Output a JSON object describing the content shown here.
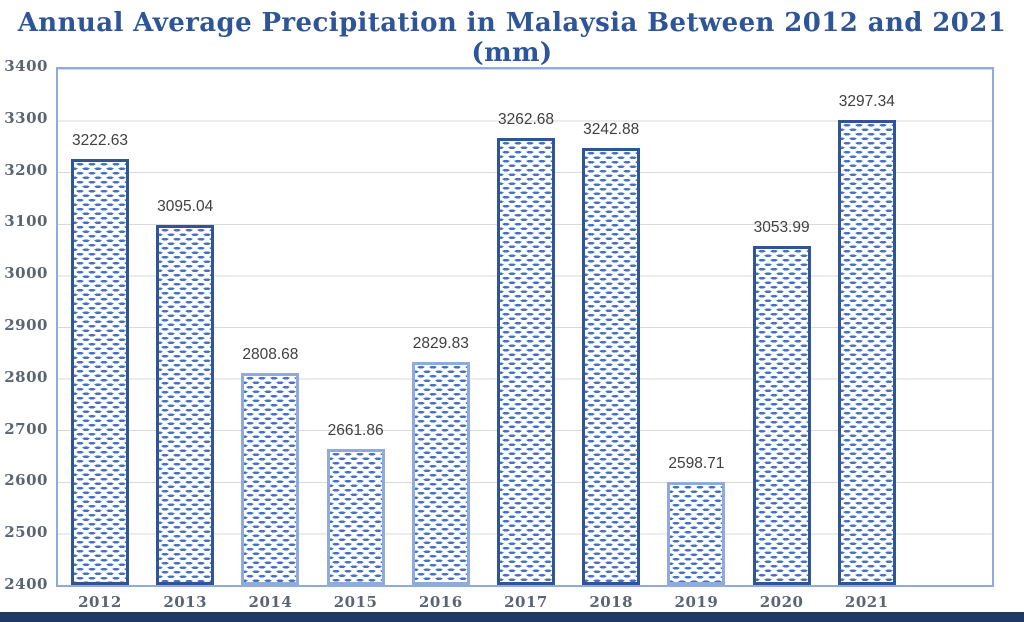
{
  "chart_data": {
    "type": "bar",
    "title": "Annual Average Precipitation in Malaysia Between 2012 and 2021 (mm)",
    "categories": [
      "2012",
      "2013",
      "2014",
      "2015",
      "2016",
      "2017",
      "2018",
      "2019",
      "2020",
      "2021"
    ],
    "values": [
      3222.63,
      3095.04,
      2808.68,
      2661.86,
      2829.83,
      3262.68,
      3242.88,
      2598.71,
      3053.99,
      3297.34
    ],
    "data_labels": [
      "3222.63",
      "3095.04",
      "2808.68",
      "2661.86",
      "2829.83",
      "3262.68",
      "3242.88",
      "2598.71",
      "3053.99",
      "3297.34"
    ],
    "yticks": [
      3400,
      3300,
      3200,
      3100,
      3000,
      2900,
      2800,
      2700,
      2600,
      2500,
      2400
    ],
    "ylim": [
      2400,
      3400
    ],
    "xlabel": "",
    "ylabel": "",
    "grid": "horizontal",
    "legend": "none",
    "bar_fill": "dashed-pattern",
    "bar_border_colors": [
      "#2f5597",
      "#2f5597",
      "#8faadc",
      "#8faadc",
      "#8faadc",
      "#2f5597",
      "#2f5597",
      "#8faadc",
      "#2f5597",
      "#2f5597"
    ],
    "style": {
      "title_color": "#2e5597",
      "axis_label_color": "#5a6472",
      "gridline_color": "#d9d9d9",
      "plot_border_color": "#8faadc",
      "pattern_dash_color": "#4472c4",
      "bar_background": "#ffffff",
      "value_label_color": "#404040",
      "bottom_strip_color": "#203864",
      "page_background": "#ffffff"
    }
  }
}
